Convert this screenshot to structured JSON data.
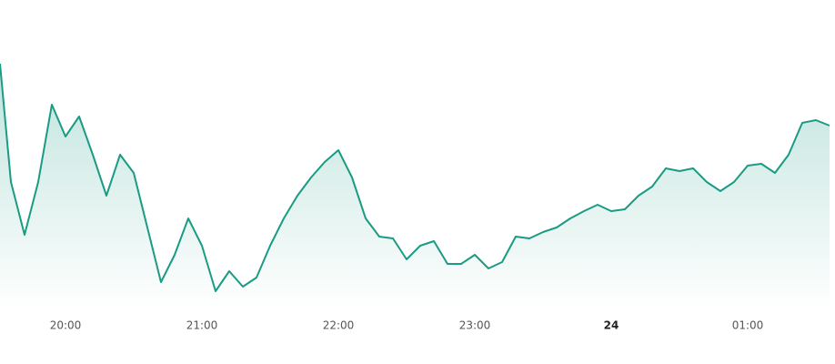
{
  "chart_data": {
    "type": "area-line",
    "x": [
      19.52,
      19.6,
      19.7,
      19.8,
      19.9,
      20.0,
      20.1,
      20.2,
      20.3,
      20.4,
      20.5,
      20.6,
      20.7,
      20.8,
      20.9,
      21.0,
      21.1,
      21.2,
      21.3,
      21.4,
      21.5,
      21.6,
      21.7,
      21.8,
      21.9,
      22.0,
      22.1,
      22.2,
      22.3,
      22.4,
      22.5,
      22.6,
      22.7,
      22.8,
      22.9,
      23.0,
      23.1,
      23.2,
      23.3,
      23.4,
      23.5,
      23.6,
      23.7,
      23.8,
      23.9,
      24.0,
      24.1,
      24.2,
      24.3,
      24.4,
      24.5,
      24.6,
      24.7,
      24.8,
      24.9,
      25.0,
      25.1,
      25.2,
      25.3,
      25.4,
      25.5,
      25.6
    ],
    "values": [
      270,
      140,
      82,
      140,
      225,
      190,
      212,
      170,
      125,
      170,
      150,
      90,
      30,
      60,
      100,
      70,
      20,
      42,
      25,
      35,
      70,
      100,
      125,
      145,
      162,
      175,
      145,
      100,
      80,
      78,
      55,
      70,
      75,
      50,
      50,
      60,
      45,
      52,
      80,
      78,
      85,
      90,
      100,
      108,
      115,
      108,
      110,
      125,
      135,
      155,
      152,
      155,
      140,
      130,
      140,
      158,
      160,
      150,
      170,
      205,
      208,
      202
    ],
    "color": "#1a9b83",
    "xlim": [
      19.52,
      25.64
    ],
    "ylim": [
      0,
      280
    ],
    "xticks": [
      {
        "value": 20,
        "label": "20:00"
      },
      {
        "value": 21,
        "label": "21:00"
      },
      {
        "value": 22,
        "label": "22:00"
      },
      {
        "value": 23,
        "label": "23:00"
      },
      {
        "value": 24,
        "label": "24"
      },
      {
        "value": 25,
        "label": "01:00"
      }
    ]
  }
}
